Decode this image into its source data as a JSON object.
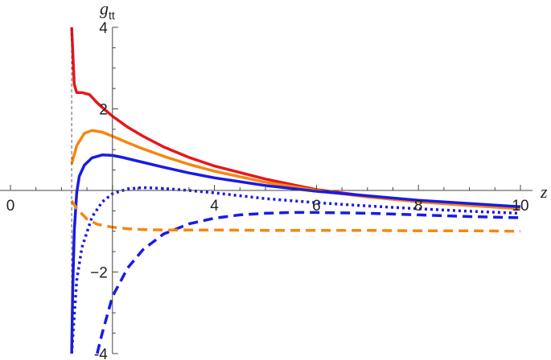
{
  "chart_data": {
    "type": "line",
    "title": "",
    "xlabel": "z",
    "ylabel": "g",
    "ylabel_subscript": "tt",
    "xlim": [
      -0.2,
      10.3
    ],
    "ylim": [
      -4,
      4
    ],
    "x_ticks": [
      0,
      4,
      6,
      8,
      10
    ],
    "x_tick_labels": [
      "0",
      "4",
      "6",
      "8",
      "10"
    ],
    "y_ticks": [
      -4,
      -2,
      2,
      4
    ],
    "y_tick_labels": [
      "-4",
      "−2",
      "2",
      "4"
    ],
    "y_axis_at_x": 2,
    "vertical_reference_line_x": 1.2,
    "grid": false,
    "legend": "none",
    "series": [
      {
        "color": "#e8161b",
        "dash": "solid",
        "x": [
          1.2,
          1.25,
          1.3,
          1.4,
          1.55,
          1.7,
          1.85,
          2.0,
          2.3,
          2.6,
          3.0,
          3.5,
          4.0,
          5.0,
          6.0,
          7.0,
          8.0,
          9.0,
          10.0
        ],
        "y": [
          4.0,
          2.6,
          2.4,
          2.4,
          2.35,
          2.15,
          1.98,
          1.82,
          1.55,
          1.33,
          1.07,
          0.81,
          0.6,
          0.28,
          0.02,
          -0.14,
          -0.27,
          -0.36,
          -0.43
        ]
      },
      {
        "color": "#f7860f",
        "dash": "solid",
        "x": [
          1.2,
          1.3,
          1.45,
          1.6,
          1.8,
          2.0,
          2.3,
          2.6,
          3.0,
          3.5,
          4.0,
          5.0,
          6.0,
          7.0,
          8.0,
          9.0,
          10.0
        ],
        "y": [
          0.65,
          1.1,
          1.4,
          1.47,
          1.43,
          1.33,
          1.17,
          1.02,
          0.84,
          0.64,
          0.47,
          0.2,
          0.0,
          -0.16,
          -0.28,
          -0.37,
          -0.45
        ]
      },
      {
        "color": "#1a1ae6",
        "dash": "solid",
        "x": [
          1.2,
          1.22,
          1.25,
          1.3,
          1.35,
          1.45,
          1.6,
          1.8,
          2.0,
          2.2,
          2.5,
          3.0,
          3.5,
          4.0,
          5.0,
          6.0,
          7.0,
          8.0,
          9.0,
          10.0
        ],
        "y": [
          -4.0,
          -2.5,
          -1.0,
          -0.05,
          0.35,
          0.62,
          0.8,
          0.87,
          0.86,
          0.81,
          0.72,
          0.57,
          0.43,
          0.31,
          0.12,
          -0.02,
          -0.13,
          -0.24,
          -0.32,
          -0.4
        ]
      },
      {
        "color": "#1a1ae6",
        "dash": "dotted",
        "x": [
          1.2,
          1.3,
          1.4,
          1.6,
          1.8,
          2.0,
          2.3,
          2.6,
          3.0,
          3.5,
          4.0,
          5.0,
          6.0,
          7.0,
          8.0,
          9.0,
          10.0
        ],
        "y": [
          -4.0,
          -2.2,
          -1.4,
          -0.65,
          -0.28,
          -0.08,
          0.04,
          0.07,
          0.05,
          0.0,
          -0.06,
          -0.2,
          -0.3,
          -0.38,
          -0.45,
          -0.51,
          -0.56
        ]
      },
      {
        "color": "#1a1ae6",
        "dash": "dashed",
        "x": [
          1.7,
          1.8,
          2.0,
          2.3,
          2.6,
          3.0,
          3.5,
          4.0,
          4.5,
          5.0,
          5.5,
          6.0,
          7.0,
          8.0,
          9.0,
          10.0
        ],
        "y": [
          -4.0,
          -3.5,
          -2.6,
          -1.9,
          -1.45,
          -1.07,
          -0.82,
          -0.68,
          -0.6,
          -0.56,
          -0.54,
          -0.54,
          -0.56,
          -0.6,
          -0.64,
          -0.67
        ]
      },
      {
        "color": "#f7860f",
        "dash": "dashed",
        "x": [
          1.2,
          1.3,
          1.5,
          1.7,
          2.0,
          2.3,
          2.6,
          3.0,
          3.5,
          4.0,
          5.0,
          6.0,
          7.0,
          8.0,
          9.0,
          10.0
        ],
        "y": [
          -0.25,
          -0.45,
          -0.7,
          -0.83,
          -0.9,
          -0.94,
          -0.96,
          -0.97,
          -0.97,
          -0.97,
          -0.98,
          -0.98,
          -0.98,
          -0.99,
          -0.99,
          -1.0
        ]
      }
    ]
  }
}
